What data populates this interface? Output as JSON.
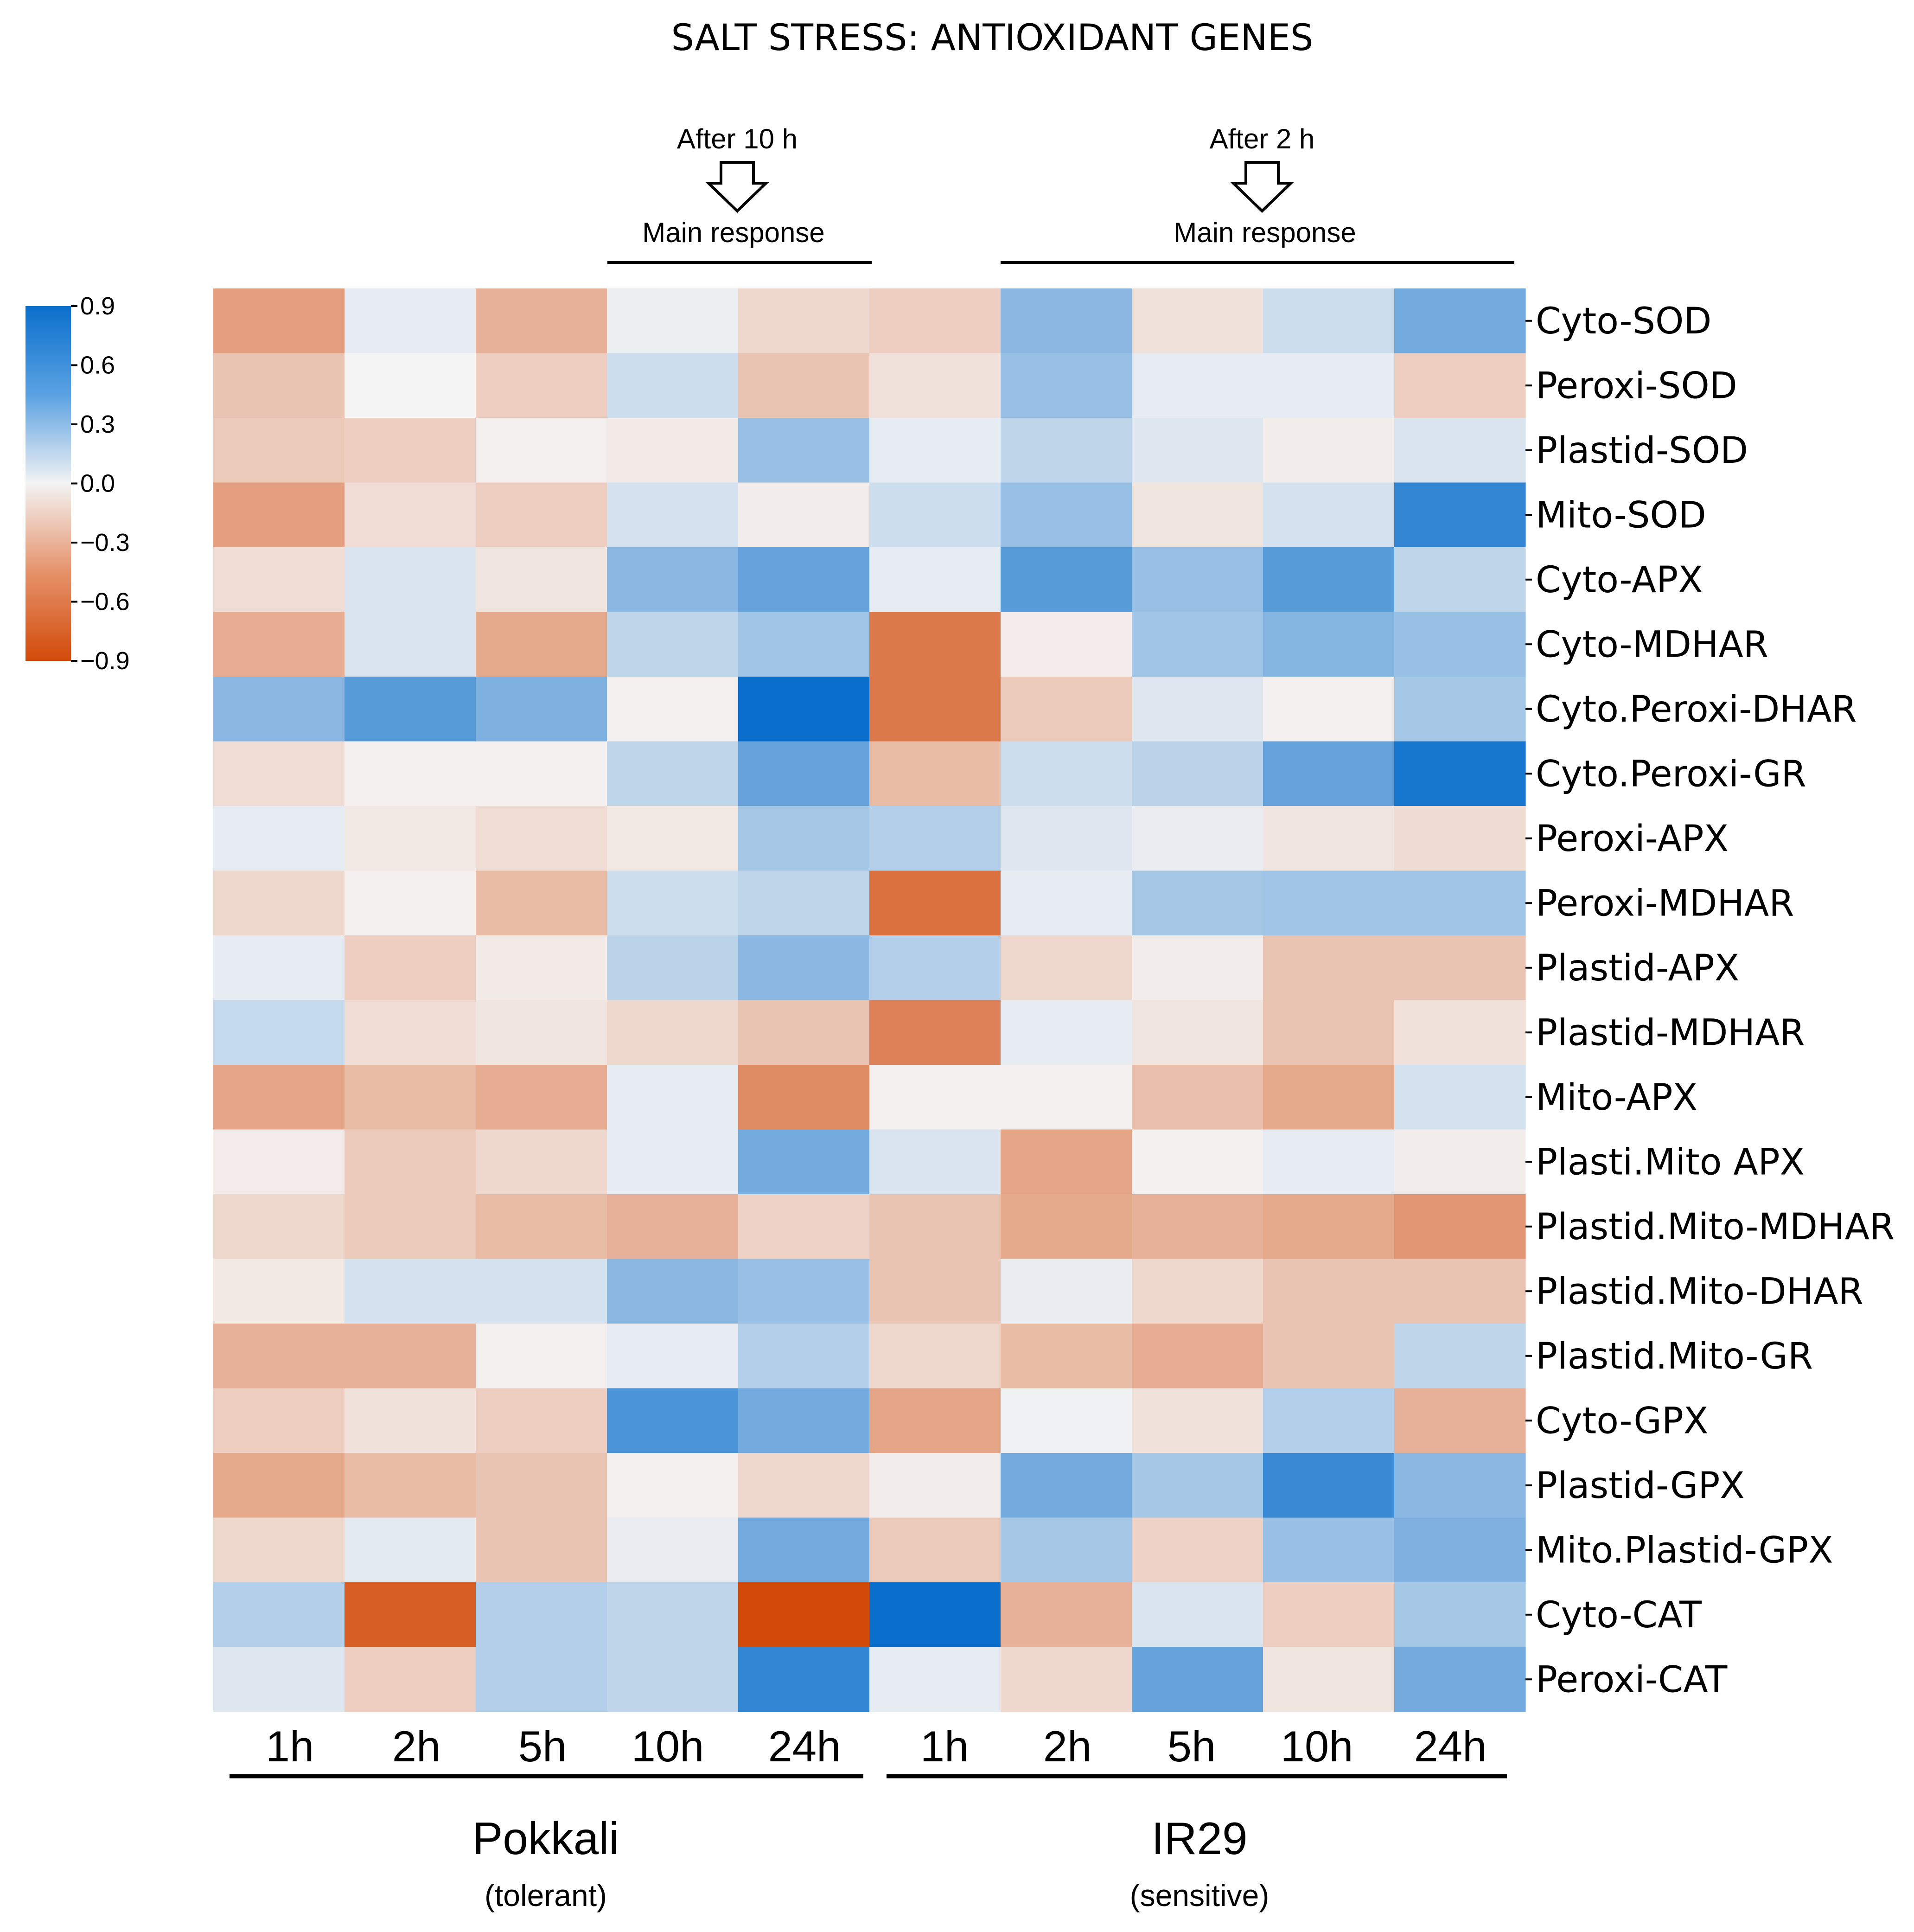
{
  "chart_data": {
    "type": "heatmap",
    "title": "SALT STRESS: ANTIOXIDANT GENES",
    "annotations": [
      {
        "name": "pokkali",
        "label": "After 10 h",
        "sublabel": "Main response"
      },
      {
        "name": "ir29",
        "label": "After 2 h",
        "sublabel": "Main response"
      }
    ],
    "colorbar": {
      "min": -0.9,
      "max": 0.9,
      "ticks": [
        "0.9",
        "0.6",
        "0.3",
        "0.0",
        "−0.3",
        "−0.6",
        "−0.9"
      ],
      "low_color": "#d24a0a",
      "mid_color": "#f3f3f3",
      "high_color": "#0a6fcc"
    },
    "columns": [
      "1h",
      "2h",
      "5h",
      "10h",
      "24h",
      "1h",
      "2h",
      "5h",
      "10h",
      "24h"
    ],
    "groups": [
      {
        "name": "Pokkali",
        "note": "(tolerant)",
        "start": 0,
        "end": 4
      },
      {
        "name": "IR29",
        "note": "(sensitive)",
        "start": 5,
        "end": 9
      }
    ],
    "rows": [
      "Cyto-SOD",
      "Peroxi-SOD",
      "Plastid-SOD",
      "Mito-SOD",
      "Cyto-APX",
      "Cyto-MDHAR",
      "Cyto.Peroxi-DHAR",
      "Cyto.Peroxi-GR",
      "Peroxi-APX",
      "Peroxi-MDHAR",
      "Plastid-APX",
      "Plastid-MDHAR",
      "Mito-APX",
      "Plasti.Mito APX",
      "Plastid.Mito-MDHAR",
      "Plastid.Mito-DHAR",
      "Plastid.Mito-GR",
      "Cyto-GPX",
      "Plastid-GPX",
      "Mito.Plastid-GPX",
      "Cyto-CAT",
      "Peroxi-CAT"
    ],
    "values": [
      [
        -0.45,
        0.05,
        -0.35,
        0.03,
        -0.15,
        -0.2,
        0.4,
        -0.1,
        0.15,
        0.5
      ],
      [
        -0.25,
        0.0,
        -0.2,
        0.15,
        -0.25,
        -0.1,
        0.35,
        0.05,
        0.05,
        -0.2
      ],
      [
        -0.22,
        -0.2,
        -0.02,
        -0.05,
        0.35,
        0.05,
        0.2,
        0.08,
        -0.03,
        0.1
      ],
      [
        -0.45,
        -0.12,
        -0.2,
        0.12,
        -0.03,
        0.15,
        0.35,
        -0.08,
        0.12,
        0.75
      ],
      [
        -0.12,
        0.1,
        -0.08,
        0.4,
        0.55,
        0.05,
        0.6,
        0.35,
        0.6,
        0.2
      ],
      [
        -0.38,
        0.1,
        -0.4,
        0.2,
        0.32,
        -0.65,
        -0.04,
        0.32,
        0.43,
        0.35
      ],
      [
        0.4,
        0.6,
        0.45,
        -0.02,
        0.95,
        -0.65,
        -0.22,
        0.08,
        -0.02,
        0.3
      ],
      [
        -0.12,
        -0.02,
        -0.02,
        0.2,
        0.55,
        -0.3,
        0.15,
        0.22,
        0.55,
        0.85
      ],
      [
        0.05,
        -0.06,
        -0.12,
        -0.06,
        0.3,
        0.25,
        0.08,
        0.04,
        -0.08,
        -0.13
      ],
      [
        -0.15,
        -0.02,
        -0.3,
        0.15,
        0.2,
        -0.7,
        0.05,
        0.3,
        0.32,
        0.32
      ],
      [
        0.05,
        -0.2,
        -0.05,
        0.22,
        0.4,
        0.25,
        -0.15,
        -0.03,
        -0.25,
        -0.25
      ],
      [
        0.18,
        -0.12,
        -0.08,
        -0.15,
        -0.25,
        -0.6,
        0.05,
        -0.08,
        -0.25,
        -0.1
      ],
      [
        -0.42,
        -0.3,
        -0.38,
        0.05,
        -0.55,
        -0.02,
        -0.02,
        -0.28,
        -0.4,
        0.12
      ],
      [
        -0.04,
        -0.22,
        -0.15,
        0.05,
        0.5,
        0.1,
        -0.42,
        -0.02,
        0.05,
        -0.03
      ],
      [
        -0.15,
        -0.22,
        -0.3,
        -0.35,
        -0.18,
        -0.25,
        -0.4,
        -0.35,
        -0.4,
        -0.5
      ],
      [
        -0.06,
        0.12,
        0.12,
        0.4,
        0.35,
        -0.25,
        0.04,
        -0.15,
        -0.25,
        -0.25
      ],
      [
        -0.35,
        -0.35,
        -0.02,
        0.05,
        0.25,
        -0.15,
        -0.3,
        -0.38,
        -0.25,
        0.2
      ],
      [
        -0.2,
        -0.1,
        -0.2,
        0.65,
        0.5,
        -0.42,
        0.02,
        -0.1,
        0.25,
        -0.35
      ],
      [
        -0.4,
        -0.3,
        -0.25,
        -0.02,
        -0.15,
        -0.03,
        0.5,
        0.3,
        0.72,
        0.4
      ],
      [
        -0.15,
        0.06,
        -0.25,
        0.04,
        0.5,
        -0.22,
        0.3,
        -0.18,
        0.35,
        0.45
      ],
      [
        0.25,
        -0.8,
        0.25,
        0.2,
        -0.9,
        0.95,
        -0.35,
        0.1,
        -0.2,
        0.3
      ],
      [
        0.08,
        -0.2,
        0.25,
        0.2,
        0.75,
        0.05,
        -0.15,
        0.55,
        -0.08,
        0.5
      ]
    ]
  }
}
